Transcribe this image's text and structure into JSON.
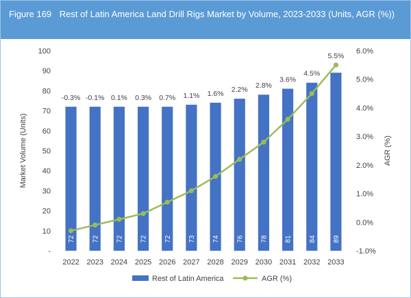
{
  "header": {
    "figure_label": "Figure 169",
    "title": "Rest of Latin America Land Drill Rigs Market by Volume, 2023-2033 (Units, AGR (%))"
  },
  "chart_data": {
    "type": "bar",
    "categories": [
      "2022",
      "2023",
      "2024",
      "2025",
      "2026",
      "2027",
      "2028",
      "2029",
      "2030",
      "2031",
      "2032",
      "2033"
    ],
    "series": [
      {
        "name": "Rest of Latin America",
        "type": "bar",
        "axis": "left",
        "values": [
          72,
          72,
          72,
          72,
          72,
          73,
          74,
          76,
          78,
          81,
          84,
          89
        ],
        "color": "#4472c4"
      },
      {
        "name": "AGR (%)",
        "type": "line",
        "axis": "right",
        "values": [
          -0.3,
          -0.1,
          0.1,
          0.3,
          0.7,
          1.1,
          1.6,
          2.2,
          2.8,
          3.6,
          4.5,
          5.5
        ],
        "labels": [
          "-0.3%",
          "-0.1%",
          "0.1%",
          "0.3%",
          "0.7%",
          "1.1%",
          "1.6%",
          "2.2%",
          "2.8%",
          "3.6%",
          "4.5%",
          "5.5%"
        ],
        "color": "#9bbb59"
      }
    ],
    "ylabel": "Market Volume (Units)",
    "y2label": "AGR (%)",
    "ylim": [
      0,
      100
    ],
    "y_ticks": [
      0,
      10,
      20,
      30,
      40,
      50,
      60,
      70,
      80,
      90,
      100
    ],
    "y_tick_labels": [
      "-",
      "10",
      "20",
      "30",
      "40",
      "50",
      "60",
      "70",
      "80",
      "90",
      "100"
    ],
    "y2lim": [
      -1.0,
      6.0
    ],
    "y2_ticks": [
      -1.0,
      0.0,
      1.0,
      2.0,
      3.0,
      4.0,
      5.0,
      6.0
    ],
    "y2_tick_labels": [
      "-1.0%",
      "0.0%",
      "1.0%",
      "2.0%",
      "3.0%",
      "4.0%",
      "5.0%",
      "6.0%"
    ],
    "legend_position": "bottom",
    "grid": false
  }
}
